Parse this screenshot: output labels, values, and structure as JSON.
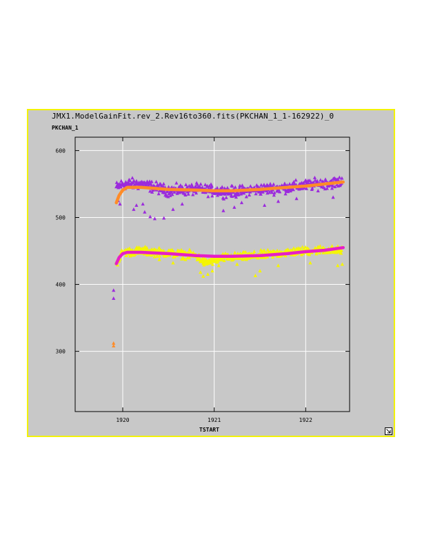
{
  "window": {
    "title": "JMX1.ModelGainFit.rev_2.Rev16to360.fits(PKCHAN_1_1-162922)_0"
  },
  "icons": {
    "resize": "resize-corner-icon"
  },
  "colors": {
    "frame": "#f2f200",
    "panel": "#c8c8c8",
    "plot_bg": "#c8c8c8",
    "grid": "#ffffff",
    "series_upper": "#9b2bdc",
    "fit_upper": "#ff8c28",
    "series_lower": "#f5f500",
    "fit_lower": "#e61ec8"
  },
  "chart_data": {
    "type": "scatter",
    "title": "JMX1.ModelGainFit.rev_2.Rev16to360.fits(PKCHAN_1_1-162922)_0",
    "xlabel": "TSTART",
    "ylabel": "PKCHAN_1",
    "xlim": [
      1919.48,
      1922.48
    ],
    "ylim": [
      210,
      620
    ],
    "xticks": [
      1920,
      1921,
      1922
    ],
    "xtick_labels": [
      "1920",
      "1921",
      "1922"
    ],
    "yticks": [
      300,
      400,
      500,
      600
    ],
    "ytick_labels": [
      "300",
      "400",
      "500",
      "600"
    ],
    "grid": true,
    "series": [
      {
        "marker": "triangle",
        "color": "#9b2bdc",
        "trend": [
          [
            1919.93,
            545
          ],
          [
            1920.0,
            550
          ],
          [
            1920.2,
            550
          ],
          [
            1920.5,
            540
          ],
          [
            1920.8,
            542
          ],
          [
            1921.0,
            540
          ],
          [
            1921.2,
            538
          ],
          [
            1921.5,
            542
          ],
          [
            1921.8,
            545
          ],
          [
            1922.0,
            548
          ],
          [
            1922.2,
            551
          ],
          [
            1922.4,
            553
          ]
        ],
        "spread": 8,
        "outliers": [
          [
            1919.95,
            525
          ],
          [
            1919.97,
            520
          ],
          [
            1920.12,
            512
          ],
          [
            1920.15,
            518
          ],
          [
            1920.22,
            520
          ],
          [
            1920.24,
            508
          ],
          [
            1920.3,
            501
          ],
          [
            1920.35,
            498
          ],
          [
            1920.45,
            499
          ],
          [
            1920.55,
            512
          ],
          [
            1920.65,
            520
          ],
          [
            1921.1,
            510
          ],
          [
            1921.22,
            515
          ],
          [
            1921.3,
            522
          ],
          [
            1921.55,
            518
          ],
          [
            1921.7,
            524
          ],
          [
            1921.9,
            528
          ],
          [
            1922.3,
            530
          ]
        ]
      },
      {
        "marker": "triangle",
        "color": "#f5f500",
        "trend": [
          [
            1919.93,
            432
          ],
          [
            1920.0,
            448
          ],
          [
            1920.2,
            450
          ],
          [
            1920.5,
            447
          ],
          [
            1920.8,
            443
          ],
          [
            1920.9,
            432
          ],
          [
            1921.0,
            436
          ],
          [
            1921.1,
            440
          ],
          [
            1921.4,
            442
          ],
          [
            1921.6,
            445
          ],
          [
            1921.8,
            448
          ],
          [
            1922.0,
            450
          ],
          [
            1922.2,
            452
          ],
          [
            1922.4,
            450
          ]
        ],
        "spread": 6,
        "outliers": [
          [
            1919.93,
            433
          ],
          [
            1920.4,
            437
          ],
          [
            1920.55,
            432
          ],
          [
            1920.85,
            418
          ],
          [
            1920.88,
            412
          ],
          [
            1920.93,
            415
          ],
          [
            1920.98,
            420
          ],
          [
            1921.05,
            428
          ],
          [
            1921.25,
            430
          ],
          [
            1921.45,
            413
          ],
          [
            1921.5,
            420
          ],
          [
            1921.7,
            428
          ],
          [
            1922.05,
            432
          ],
          [
            1922.35,
            428
          ],
          [
            1922.4,
            430
          ]
        ]
      },
      {
        "marker": "triangle",
        "color": "#9b2bdc",
        "points": [
          [
            1919.9,
            391
          ],
          [
            1919.9,
            379
          ]
        ]
      },
      {
        "marker": "triangle",
        "color": "#ff8c28",
        "points": [
          [
            1919.9,
            308
          ],
          [
            1919.9,
            312
          ]
        ]
      }
    ],
    "fits": [
      {
        "color": "#ff8c28",
        "points": [
          [
            1919.93,
            522
          ],
          [
            1919.96,
            533
          ],
          [
            1920.0,
            541
          ],
          [
            1920.05,
            545
          ],
          [
            1920.2,
            545
          ],
          [
            1920.5,
            542
          ],
          [
            1920.8,
            541
          ],
          [
            1921.0,
            540
          ],
          [
            1921.2,
            540
          ],
          [
            1921.5,
            542
          ],
          [
            1921.8,
            545
          ],
          [
            1922.0,
            547
          ],
          [
            1922.2,
            550
          ],
          [
            1922.41,
            553
          ]
        ]
      },
      {
        "color": "#e61ec8",
        "points": [
          [
            1919.93,
            431
          ],
          [
            1919.96,
            440
          ],
          [
            1920.0,
            446
          ],
          [
            1920.05,
            448
          ],
          [
            1920.2,
            448
          ],
          [
            1920.5,
            446
          ],
          [
            1920.8,
            443
          ],
          [
            1921.0,
            442
          ],
          [
            1921.2,
            442
          ],
          [
            1921.5,
            443
          ],
          [
            1921.8,
            446
          ],
          [
            1922.0,
            449
          ],
          [
            1922.2,
            451
          ],
          [
            1922.41,
            455
          ]
        ]
      }
    ]
  }
}
